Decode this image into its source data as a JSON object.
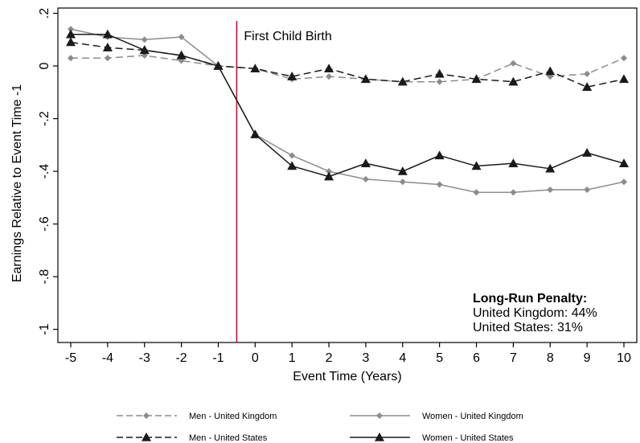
{
  "chart_data": {
    "type": "line",
    "xlabel": "Event Time (Years)",
    "ylabel": "Earnings Relative to Event Time -1",
    "x": [
      -5,
      -4,
      -3,
      -2,
      -1,
      0,
      1,
      2,
      3,
      4,
      5,
      6,
      7,
      8,
      9,
      10
    ],
    "x_tick_labels": [
      "-5",
      "-4",
      "-3",
      "-2",
      "-1",
      "0",
      "1",
      "2",
      "3",
      "4",
      "5",
      "6",
      "7",
      "8",
      "9",
      "10"
    ],
    "y_tick_values": [
      0.2,
      0,
      -0.2,
      -0.4,
      -0.6,
      -0.8,
      -1
    ],
    "y_tick_labels": [
      ".2",
      "0",
      "-.2",
      "-.4",
      "-.6",
      "-.8",
      "-1"
    ],
    "xlim": [
      -5,
      10
    ],
    "ylim": [
      -1.05,
      0.22
    ],
    "grid": false,
    "legend_position": "bottom",
    "event_line": {
      "x": -0.5,
      "label": "First Child Birth",
      "color": "#c0143c"
    },
    "annotation": {
      "title": "Long-Run Penalty:",
      "lines": [
        "United Kingdom:  44%",
        "United States:  31%"
      ]
    },
    "series": [
      {
        "name": "Men - United Kingdom",
        "color": "#8c8c8c",
        "dashed": true,
        "marker": "diamond",
        "values": [
          0.03,
          0.03,
          0.04,
          0.02,
          0.0,
          -0.01,
          -0.05,
          -0.04,
          -0.05,
          -0.06,
          -0.06,
          -0.05,
          0.01,
          -0.04,
          -0.03,
          0.03
        ]
      },
      {
        "name": "Women - United Kingdom",
        "color": "#8c8c8c",
        "dashed": false,
        "marker": "diamond",
        "values": [
          0.14,
          0.11,
          0.1,
          0.11,
          0.0,
          -0.26,
          -0.34,
          -0.4,
          -0.43,
          -0.44,
          -0.45,
          -0.48,
          -0.48,
          -0.47,
          -0.47,
          -0.44
        ]
      },
      {
        "name": "Men - United States",
        "color": "#1a1a1a",
        "dashed": true,
        "marker": "triangle",
        "values": [
          0.09,
          0.07,
          0.06,
          0.04,
          0.0,
          -0.01,
          -0.04,
          -0.01,
          -0.05,
          -0.06,
          -0.03,
          -0.05,
          -0.06,
          -0.02,
          -0.08,
          -0.05
        ]
      },
      {
        "name": "Women - United States",
        "color": "#1a1a1a",
        "dashed": false,
        "marker": "triangle",
        "values": [
          0.12,
          0.12,
          0.06,
          0.04,
          0.0,
          -0.26,
          -0.38,
          -0.42,
          -0.37,
          -0.4,
          -0.34,
          -0.38,
          -0.37,
          -0.39,
          -0.33,
          -0.37
        ]
      }
    ]
  }
}
